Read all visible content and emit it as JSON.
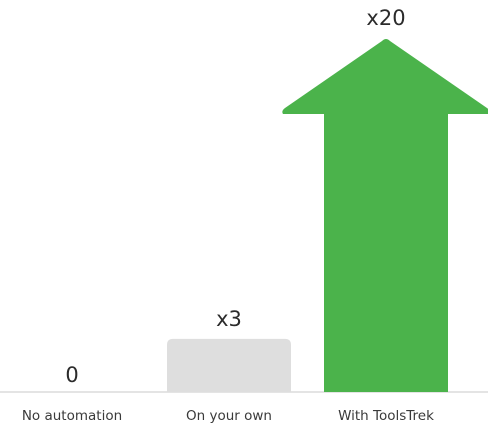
{
  "chart_data": {
    "type": "bar",
    "categories": [
      "No automation",
      "On your own",
      "With ToolsTrek"
    ],
    "values": [
      0,
      3,
      20
    ],
    "value_labels": [
      "0",
      "x3",
      "x20"
    ],
    "bar_styles": [
      "none",
      "rounded",
      "arrow"
    ],
    "ylim": [
      0,
      20
    ],
    "grid": false,
    "legend": "none",
    "title": "",
    "xlabel": "",
    "ylabel": ""
  },
  "colors": {
    "baseline": "#dcdcdc",
    "bar_muted": "#dedede",
    "bar_accent": "#4bb34b",
    "value_text": "#2b2b2b",
    "category_text": "#3a3a3a"
  }
}
